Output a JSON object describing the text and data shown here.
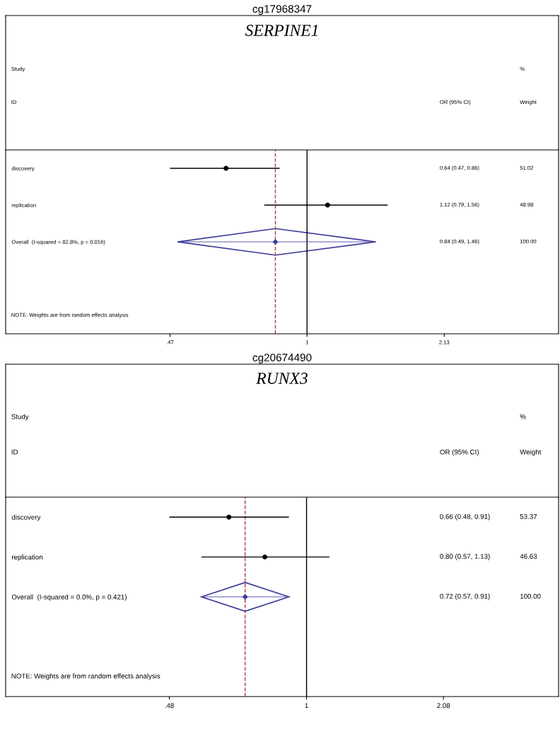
{
  "chart_data": [
    {
      "type": "scatter",
      "orientation": "horizontal",
      "title": "cg17968347",
      "subtitle": "SERPINE1",
      "log": "x",
      "xlim": [
        0.19,
        4.0
      ],
      "xticks": [
        {
          "value": 0.47,
          "label": ".47"
        },
        1,
        2.13
      ],
      "categories": [
        "discovery",
        "replication",
        "Overall  (I-squared = 82.8%, p = 0.016)",
        null,
        null
      ],
      "series": [
        {
          "color": "#000000",
          "marker": "circle",
          "values": [
            0.64,
            1.12,
            null,
            null,
            null
          ],
          "errors": [
            [
              0.47,
              0.86
            ],
            [
              0.79,
              1.56
            ],
            null,
            null,
            null
          ]
        },
        {
          "color": "#3a3a9a",
          "marker": "diamond",
          "values": [
            null,
            null,
            0.84,
            null,
            null
          ],
          "errors": [
            null,
            null,
            [
              0.49,
              1.46
            ],
            null,
            null
          ]
        }
      ],
      "ref_lines": [
        {
          "axis": "x",
          "value": 1,
          "color": "#000000",
          "line_style": "solid"
        },
        {
          "axis": "x",
          "value": 0.84,
          "color": "#b04040",
          "line_style": "dashed"
        }
      ],
      "annotations": [
        "Study",
        "ID",
        "OR (95% CI)",
        "%",
        "Weight",
        "NOTE: Weights are from random effects analysis",
        "0.64 (0.47, 0.86)",
        "51.02",
        "1.12 (0.79, 1.56)",
        "48.98",
        "0.84 (0.49, 1.46)",
        "100.00"
      ]
    },
    {
      "type": "scatter",
      "orientation": "horizontal",
      "title": "cg20674490",
      "subtitle": "RUNX3",
      "log": "x",
      "xlim": [
        0.2,
        3.85
      ],
      "xticks": [
        {
          "value": 0.48,
          "label": ".48"
        },
        1,
        2.08
      ],
      "categories": [
        "discovery",
        "replication",
        "Overall  (I-squared = 0.0%, p = 0.421)",
        null,
        null
      ],
      "series": [
        {
          "color": "#000000",
          "marker": "circle",
          "values": [
            0.66,
            0.8,
            null,
            null,
            null
          ],
          "errors": [
            [
              0.48,
              0.91
            ],
            [
              0.57,
              1.13
            ],
            null,
            null,
            null
          ]
        },
        {
          "color": "#3a3a9a",
          "marker": "diamond",
          "values": [
            null,
            null,
            0.72,
            null,
            null
          ],
          "errors": [
            null,
            null,
            [
              0.57,
              0.91
            ],
            null,
            null
          ]
        }
      ],
      "ref_lines": [
        {
          "axis": "x",
          "value": 1,
          "color": "#000000",
          "line_style": "solid"
        },
        {
          "axis": "x",
          "value": 0.72,
          "color": "#b04040",
          "line_style": "dashed"
        }
      ],
      "annotations": [
        "Study",
        "ID",
        "OR (95% CI)",
        "%",
        "Weight",
        "NOTE: Weights are from random effects analysis",
        "0.66 (0.48, 0.91)",
        "53.37",
        "0.80 (0.57, 1.13)",
        "46.63",
        "0.72 (0.57, 0.91)",
        "100.00"
      ]
    }
  ]
}
